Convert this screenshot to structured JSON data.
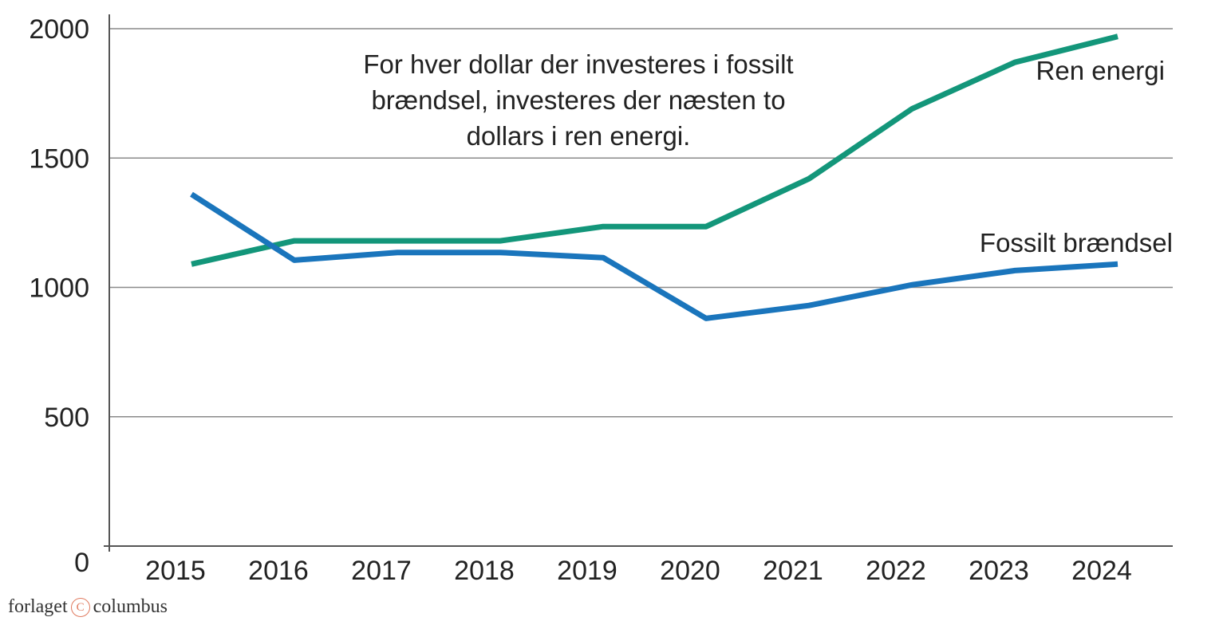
{
  "chart_data": {
    "type": "line",
    "categories": [
      "2015",
      "2016",
      "2017",
      "2018",
      "2019",
      "2020",
      "2021",
      "2022",
      "2023",
      "2024"
    ],
    "series": [
      {
        "name": "Ren energi",
        "color": "#13967a",
        "values": [
          1090,
          1180,
          1180,
          1180,
          1235,
          1235,
          1420,
          1690,
          1870,
          1970
        ]
      },
      {
        "name": "Fossilt brændsel",
        "color": "#1a75bc",
        "values": [
          1360,
          1105,
          1135,
          1135,
          1115,
          880,
          930,
          1010,
          1065,
          1090
        ]
      }
    ],
    "yticks": [
      "0",
      "500",
      "1000",
      "1500",
      "2000"
    ],
    "ylim": [
      0,
      2000
    ],
    "annotation": [
      "For hver dollar der investeres i fossilt",
      "brændsel, investeres der næsten to",
      "dollars i ren energi."
    ],
    "grid": true
  },
  "branding": {
    "before": "forlaget",
    "mark": "C",
    "after": "columbus"
  }
}
